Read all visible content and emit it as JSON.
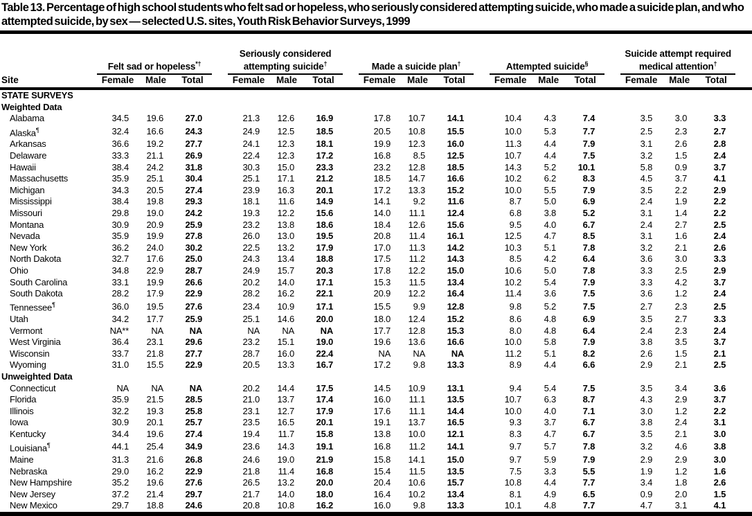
{
  "title": "Table 13. Percentage of high school students who felt sad or hopeless, who seriously considered attempting suicide, who made a suicide plan, and who attempted suicide, by sex — selected U.S. sites, Youth Risk Behavior Surveys, 1999",
  "colors": {
    "text": "#000000",
    "background": "#ffffff",
    "rules": "#000000"
  },
  "table": {
    "site_header": "Site",
    "sub_headers": [
      "Female",
      "Male",
      "Total"
    ],
    "groups": [
      {
        "label": "Felt sad or hopeless",
        "sup": "*†"
      },
      {
        "label": "Seriously considered attempting suicide",
        "sup": "†"
      },
      {
        "label": "Made a suicide plan",
        "sup": "†"
      },
      {
        "label": "Attempted suicide",
        "sup": "§"
      },
      {
        "label": "Suicide attempt required medical attention",
        "sup": "†"
      }
    ],
    "rows": [
      {
        "type": "section",
        "label": "STATE SURVEYS"
      },
      {
        "type": "section",
        "label": "Weighted Data"
      },
      {
        "type": "data",
        "site": "Alabama",
        "sup": "",
        "values": [
          "34.5",
          "19.6",
          "27.0",
          "21.3",
          "12.6",
          "16.9",
          "17.8",
          "10.7",
          "14.1",
          "10.4",
          "4.3",
          "7.4",
          "3.5",
          "3.0",
          "3.3"
        ]
      },
      {
        "type": "data",
        "site": "Alaska",
        "sup": "¶",
        "values": [
          "32.4",
          "16.6",
          "24.3",
          "24.9",
          "12.5",
          "18.5",
          "20.5",
          "10.8",
          "15.5",
          "10.0",
          "5.3",
          "7.7",
          "2.5",
          "2.3",
          "2.7"
        ]
      },
      {
        "type": "data",
        "site": "Arkansas",
        "sup": "",
        "values": [
          "36.6",
          "19.2",
          "27.7",
          "24.1",
          "12.3",
          "18.1",
          "19.9",
          "12.3",
          "16.0",
          "11.3",
          "4.4",
          "7.9",
          "3.1",
          "2.6",
          "2.8"
        ]
      },
      {
        "type": "data",
        "site": "Delaware",
        "sup": "",
        "values": [
          "33.3",
          "21.1",
          "26.9",
          "22.4",
          "12.3",
          "17.2",
          "16.8",
          "8.5",
          "12.5",
          "10.7",
          "4.4",
          "7.5",
          "3.2",
          "1.5",
          "2.4"
        ]
      },
      {
        "type": "data",
        "site": "Hawaii",
        "sup": "",
        "values": [
          "38.4",
          "24.2",
          "31.8",
          "30.3",
          "15.0",
          "23.3",
          "23.2",
          "12.8",
          "18.5",
          "14.3",
          "5.2",
          "10.1",
          "5.8",
          "0.9",
          "3.7"
        ]
      },
      {
        "type": "data",
        "site": "Massachusetts",
        "sup": "",
        "values": [
          "35.9",
          "25.1",
          "30.4",
          "25.1",
          "17.1",
          "21.2",
          "18.5",
          "14.7",
          "16.6",
          "10.2",
          "6.2",
          "8.3",
          "4.5",
          "3.7",
          "4.1"
        ]
      },
      {
        "type": "data",
        "site": "Michigan",
        "sup": "",
        "values": [
          "34.3",
          "20.5",
          "27.4",
          "23.9",
          "16.3",
          "20.1",
          "17.2",
          "13.3",
          "15.2",
          "10.0",
          "5.5",
          "7.9",
          "3.5",
          "2.2",
          "2.9"
        ]
      },
      {
        "type": "data",
        "site": "Mississippi",
        "sup": "",
        "values": [
          "38.4",
          "19.8",
          "29.3",
          "18.1",
          "11.6",
          "14.9",
          "14.1",
          "9.2",
          "11.6",
          "8.7",
          "5.0",
          "6.9",
          "2.4",
          "1.9",
          "2.2"
        ]
      },
      {
        "type": "data",
        "site": "Missouri",
        "sup": "",
        "values": [
          "29.8",
          "19.0",
          "24.2",
          "19.3",
          "12.2",
          "15.6",
          "14.0",
          "11.1",
          "12.4",
          "6.8",
          "3.8",
          "5.2",
          "3.1",
          "1.4",
          "2.2"
        ]
      },
      {
        "type": "data",
        "site": "Montana",
        "sup": "",
        "values": [
          "30.9",
          "20.9",
          "25.9",
          "23.2",
          "13.8",
          "18.6",
          "18.4",
          "12.6",
          "15.6",
          "9.5",
          "4.0",
          "6.7",
          "2.4",
          "2.7",
          "2.5"
        ]
      },
      {
        "type": "data",
        "site": "Nevada",
        "sup": "",
        "values": [
          "35.9",
          "19.9",
          "27.8",
          "26.0",
          "13.0",
          "19.5",
          "20.8",
          "11.4",
          "16.1",
          "12.5",
          "4.7",
          "8.5",
          "3.1",
          "1.6",
          "2.4"
        ]
      },
      {
        "type": "data",
        "site": "New York",
        "sup": "",
        "values": [
          "36.2",
          "24.0",
          "30.2",
          "22.5",
          "13.2",
          "17.9",
          "17.0",
          "11.3",
          "14.2",
          "10.3",
          "5.1",
          "7.8",
          "3.2",
          "2.1",
          "2.6"
        ]
      },
      {
        "type": "data",
        "site": "North Dakota",
        "sup": "",
        "values": [
          "32.7",
          "17.6",
          "25.0",
          "24.3",
          "13.4",
          "18.8",
          "17.5",
          "11.2",
          "14.3",
          "8.5",
          "4.2",
          "6.4",
          "3.6",
          "3.0",
          "3.3"
        ]
      },
      {
        "type": "data",
        "site": "Ohio",
        "sup": "",
        "values": [
          "34.8",
          "22.9",
          "28.7",
          "24.9",
          "15.7",
          "20.3",
          "17.8",
          "12.2",
          "15.0",
          "10.6",
          "5.0",
          "7.8",
          "3.3",
          "2.5",
          "2.9"
        ]
      },
      {
        "type": "data",
        "site": "South Carolina",
        "sup": "",
        "values": [
          "33.1",
          "19.9",
          "26.6",
          "20.2",
          "14.0",
          "17.1",
          "15.3",
          "11.5",
          "13.4",
          "10.2",
          "5.4",
          "7.9",
          "3.3",
          "4.2",
          "3.7"
        ]
      },
      {
        "type": "data",
        "site": "South Dakota",
        "sup": "",
        "values": [
          "28.2",
          "17.9",
          "22.9",
          "28.2",
          "16.2",
          "22.1",
          "20.9",
          "12.2",
          "16.4",
          "11.4",
          "3.6",
          "7.5",
          "3.6",
          "1.2",
          "2.4"
        ]
      },
      {
        "type": "data",
        "site": "Tennessee",
        "sup": "¶",
        "values": [
          "36.0",
          "19.5",
          "27.6",
          "23.4",
          "10.9",
          "17.1",
          "15.5",
          "9.9",
          "12.8",
          "9.8",
          "5.2",
          "7.5",
          "2.7",
          "2.3",
          "2.5"
        ]
      },
      {
        "type": "data",
        "site": "Utah",
        "sup": "",
        "values": [
          "34.2",
          "17.7",
          "25.9",
          "25.1",
          "14.6",
          "20.0",
          "18.0",
          "12.4",
          "15.2",
          "8.6",
          "4.8",
          "6.9",
          "3.5",
          "2.7",
          "3.3"
        ]
      },
      {
        "type": "data",
        "site": "Vermont",
        "sup": "",
        "values": [
          "NA**",
          "NA",
          "NA",
          "NA",
          "NA",
          "NA",
          "17.7",
          "12.8",
          "15.3",
          "8.0",
          "4.8",
          "6.4",
          "2.4",
          "2.3",
          "2.4"
        ]
      },
      {
        "type": "data",
        "site": "West Virginia",
        "sup": "",
        "values": [
          "36.4",
          "23.1",
          "29.6",
          "23.2",
          "15.1",
          "19.0",
          "19.6",
          "13.6",
          "16.6",
          "10.0",
          "5.8",
          "7.9",
          "3.8",
          "3.5",
          "3.7"
        ]
      },
      {
        "type": "data",
        "site": "Wisconsin",
        "sup": "",
        "values": [
          "33.7",
          "21.8",
          "27.7",
          "28.7",
          "16.0",
          "22.4",
          "NA",
          "NA",
          "NA",
          "11.2",
          "5.1",
          "8.2",
          "2.6",
          "1.5",
          "2.1"
        ]
      },
      {
        "type": "data",
        "site": "Wyoming",
        "sup": "",
        "values": [
          "31.0",
          "15.5",
          "22.9",
          "20.5",
          "13.3",
          "16.7",
          "17.2",
          "9.8",
          "13.3",
          "8.9",
          "4.4",
          "6.6",
          "2.9",
          "2.1",
          "2.5"
        ]
      },
      {
        "type": "section",
        "label": "Unweighted Data"
      },
      {
        "type": "data",
        "site": "Connecticut",
        "sup": "",
        "values": [
          "NA",
          "NA",
          "NA",
          "20.2",
          "14.4",
          "17.5",
          "14.5",
          "10.9",
          "13.1",
          "9.4",
          "5.4",
          "7.5",
          "3.5",
          "3.4",
          "3.6"
        ]
      },
      {
        "type": "data",
        "site": "Florida",
        "sup": "",
        "values": [
          "35.9",
          "21.5",
          "28.5",
          "21.0",
          "13.7",
          "17.4",
          "16.0",
          "11.1",
          "13.5",
          "10.7",
          "6.3",
          "8.7",
          "4.3",
          "2.9",
          "3.7"
        ]
      },
      {
        "type": "data",
        "site": "Illinois",
        "sup": "",
        "values": [
          "32.2",
          "19.3",
          "25.8",
          "23.1",
          "12.7",
          "17.9",
          "17.6",
          "11.1",
          "14.4",
          "10.0",
          "4.0",
          "7.1",
          "3.0",
          "1.2",
          "2.2"
        ]
      },
      {
        "type": "data",
        "site": "Iowa",
        "sup": "",
        "values": [
          "30.9",
          "20.1",
          "25.7",
          "23.5",
          "16.5",
          "20.1",
          "19.1",
          "13.7",
          "16.5",
          "9.3",
          "3.7",
          "6.7",
          "3.8",
          "2.4",
          "3.1"
        ]
      },
      {
        "type": "data",
        "site": "Kentucky",
        "sup": "",
        "values": [
          "34.4",
          "19.6",
          "27.4",
          "19.4",
          "11.7",
          "15.8",
          "13.8",
          "10.0",
          "12.1",
          "8.3",
          "4.7",
          "6.7",
          "3.5",
          "2.1",
          "3.0"
        ]
      },
      {
        "type": "data",
        "site": "Louisiana",
        "sup": "¶",
        "values": [
          "44.1",
          "25.4",
          "34.9",
          "23.6",
          "14.3",
          "19.1",
          "16.8",
          "11.2",
          "14.1",
          "9.7",
          "5.7",
          "7.8",
          "3.2",
          "4.6",
          "3.8"
        ]
      },
      {
        "type": "data",
        "site": "Maine",
        "sup": "",
        "values": [
          "31.3",
          "21.6",
          "26.8",
          "24.6",
          "19.0",
          "21.9",
          "15.8",
          "14.1",
          "15.0",
          "9.7",
          "5.9",
          "7.9",
          "2.9",
          "2.9",
          "3.0"
        ]
      },
      {
        "type": "data",
        "site": "Nebraska",
        "sup": "",
        "values": [
          "29.0",
          "16.2",
          "22.9",
          "21.8",
          "11.4",
          "16.8",
          "15.4",
          "11.5",
          "13.5",
          "7.5",
          "3.3",
          "5.5",
          "1.9",
          "1.2",
          "1.6"
        ]
      },
      {
        "type": "data",
        "site": "New Hampshire",
        "sup": "",
        "values": [
          "35.2",
          "19.6",
          "27.6",
          "26.5",
          "13.2",
          "20.0",
          "20.4",
          "10.6",
          "15.7",
          "10.8",
          "4.4",
          "7.7",
          "3.4",
          "1.8",
          "2.6"
        ]
      },
      {
        "type": "data",
        "site": "New Jersey",
        "sup": "",
        "values": [
          "37.2",
          "21.4",
          "29.7",
          "21.7",
          "14.0",
          "18.0",
          "16.4",
          "10.2",
          "13.4",
          "8.1",
          "4.9",
          "6.5",
          "0.9",
          "2.0",
          "1.5"
        ]
      },
      {
        "type": "data",
        "site": "New Mexico",
        "sup": "",
        "values": [
          "29.7",
          "18.8",
          "24.6",
          "20.8",
          "10.8",
          "16.2",
          "16.0",
          "9.8",
          "13.3",
          "10.1",
          "4.8",
          "7.7",
          "4.7",
          "3.1",
          "4.1"
        ]
      }
    ]
  }
}
